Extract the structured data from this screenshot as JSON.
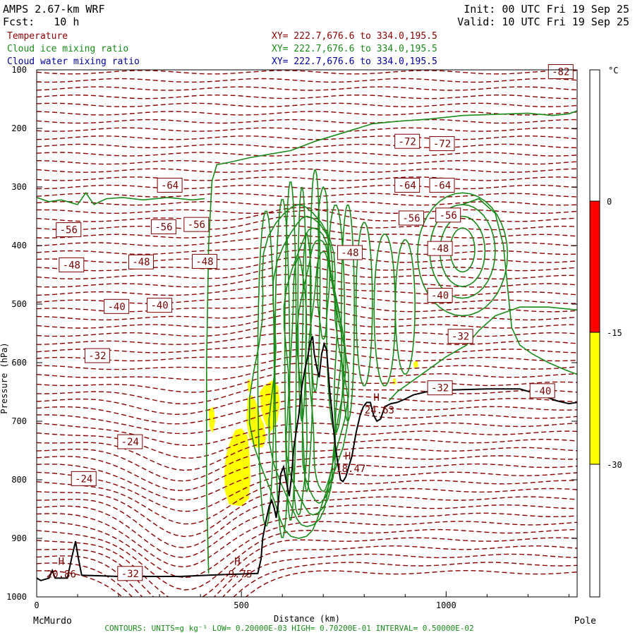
{
  "header": {
    "model": "AMPS 2.67-km WRF",
    "forecast": "Fcst:   10 h",
    "init": "Init: 00 UTC Fri 19 Sep 25",
    "valid": "Valid: 10 UTC Fri 19 Sep 25"
  },
  "fields": [
    {
      "name": "Temperature",
      "xy": "XY= 222.7,676.6 to 334.0,195.5",
      "color": "#8b0000"
    },
    {
      "name": "Cloud ice mixing ratio",
      "xy": "XY= 222.7,676.6 to 334.0,195.5",
      "color": "#1a8a1a"
    },
    {
      "name": "Cloud water mixing ratio",
      "xy": "XY= 222.7,676.6 to 334.0,195.5",
      "color": "#0000a0"
    }
  ],
  "footer": {
    "left_end": "McMurdo",
    "right_end": "Pole",
    "contours": "CONTOURS:  UNITS=g kg⁻¹  LOW= 0.20000E-03  HIGH= 0.70200E-01  INTERVAL=  0.50000E-02"
  },
  "chart_data": {
    "type": "contour cross-section",
    "xlabel": "Distance (km)",
    "ylabel": "Pressure (hPa)",
    "xlim": [
      0,
      1320
    ],
    "ylim": [
      1000,
      100
    ],
    "x_ticks": [
      0,
      500,
      1000
    ],
    "y_ticks": [
      100,
      200,
      300,
      400,
      500,
      600,
      700,
      800,
      900,
      1000
    ],
    "grid": false,
    "temperature_contour_labels": [
      {
        "text": "-82",
        "x": 1280,
        "p": 103
      },
      {
        "text": "-72",
        "x": 905,
        "p": 222
      },
      {
        "text": "-72",
        "x": 990,
        "p": 226
      },
      {
        "text": "-64",
        "x": 325,
        "p": 297
      },
      {
        "text": "-64",
        "x": 905,
        "p": 297
      },
      {
        "text": "-64",
        "x": 990,
        "p": 297
      },
      {
        "text": "-56",
        "x": 78,
        "p": 373
      },
      {
        "text": "-56",
        "x": 310,
        "p": 368
      },
      {
        "text": "-56",
        "x": 390,
        "p": 364
      },
      {
        "text": "-56",
        "x": 915,
        "p": 353
      },
      {
        "text": "-56",
        "x": 1005,
        "p": 348
      },
      {
        "text": "-48",
        "x": 85,
        "p": 433
      },
      {
        "text": "-48",
        "x": 255,
        "p": 428
      },
      {
        "text": "-48",
        "x": 410,
        "p": 427
      },
      {
        "text": "-48",
        "x": 765,
        "p": 412
      },
      {
        "text": "-48",
        "x": 985,
        "p": 405
      },
      {
        "text": "-40",
        "x": 195,
        "p": 504
      },
      {
        "text": "-40",
        "x": 300,
        "p": 502
      },
      {
        "text": "-40",
        "x": 985,
        "p": 485
      },
      {
        "text": "-32",
        "x": 148,
        "p": 588
      },
      {
        "text": "-32",
        "x": 1035,
        "p": 555
      },
      {
        "text": "-32",
        "x": 985,
        "p": 643
      },
      {
        "text": "-32",
        "x": 228,
        "p": 960
      },
      {
        "text": "-40",
        "x": 1235,
        "p": 648
      },
      {
        "text": "-24",
        "x": 228,
        "p": 735
      },
      {
        "text": "-24",
        "x": 115,
        "p": 798
      }
    ],
    "extrema": [
      {
        "label": "H",
        "value": "20.86",
        "x": 60,
        "p": 945
      },
      {
        "label": "H",
        "value": "-9.75",
        "x": 490,
        "p": 945
      },
      {
        "label": "H",
        "value": "-18.47",
        "x": 760,
        "p": 765
      },
      {
        "label": "H",
        "value": "-24.63",
        "x": 830,
        "p": 665
      }
    ],
    "colorbar": {
      "title": "°C",
      "ticks": [
        "0",
        "-15",
        "-30"
      ],
      "bands": [
        {
          "range": "above 0",
          "color": "#ffffff"
        },
        {
          "range": "-15 to 0",
          "color": "#ff0000"
        },
        {
          "range": "-30 to -15",
          "color": "#ffff00"
        },
        {
          "range": "below -30",
          "color": "#ffffff"
        }
      ]
    }
  }
}
